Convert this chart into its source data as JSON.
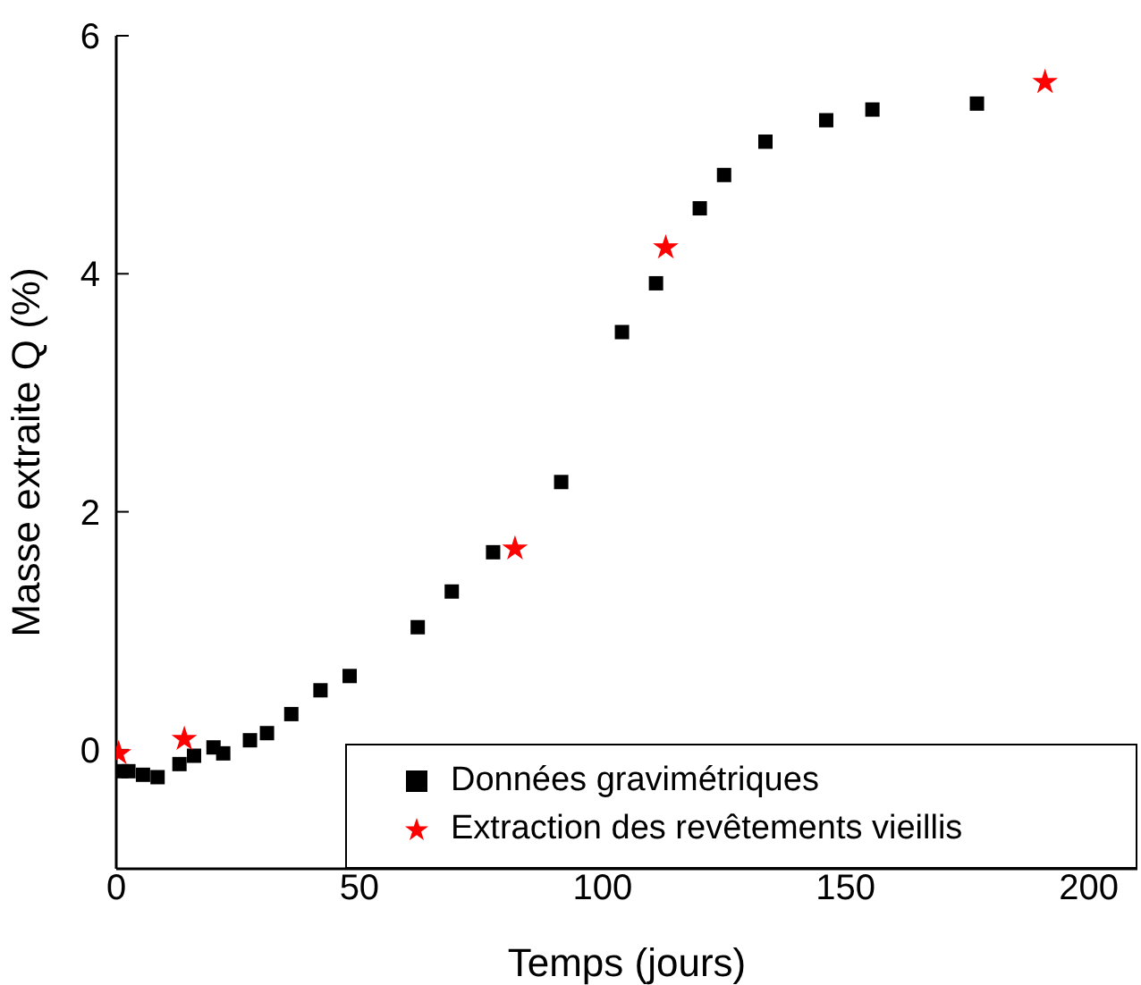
{
  "chart_data": {
    "type": "scatter",
    "xlabel": "Temps (jours)",
    "ylabel": "Masse extraite Q (%)",
    "xlim": [
      0,
      210
    ],
    "xticks": [
      0,
      50,
      100,
      150,
      200
    ],
    "ylim": [
      -1,
      6
    ],
    "yticks": [
      0,
      2,
      4,
      6
    ],
    "grid": false,
    "legend": "bottom right",
    "series": [
      {
        "name": "Données gravimétriques",
        "color": "#000000",
        "marker": "square",
        "x": [
          1,
          2.5,
          5.5,
          8.5,
          13,
          16,
          20,
          22,
          27.5,
          31,
          36,
          42,
          48,
          62,
          69,
          77.5,
          91.5,
          104,
          111,
          120,
          125,
          133.5,
          146,
          155.5,
          177
        ],
        "values": [
          -0.18,
          -0.18,
          -0.21,
          -0.23,
          -0.12,
          -0.05,
          0.02,
          -0.03,
          0.08,
          0.14,
          0.3,
          0.5,
          0.62,
          1.03,
          1.33,
          1.66,
          2.25,
          3.51,
          3.92,
          4.55,
          4.83,
          5.11,
          5.29,
          5.38,
          5.43
        ]
      },
      {
        "name": "Extraction des revêtements vieillis",
        "color": "#ff0000",
        "marker": "star",
        "x": [
          0.5,
          14,
          82,
          113,
          191
        ],
        "values": [
          -0.03,
          0.09,
          1.69,
          4.22,
          5.61
        ]
      }
    ]
  }
}
